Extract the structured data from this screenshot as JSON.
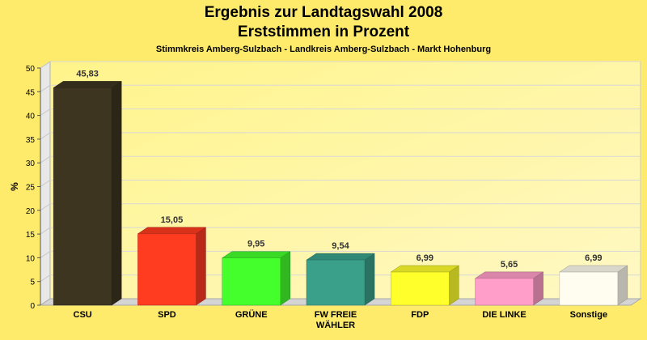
{
  "chart_data": {
    "type": "bar",
    "title": "Ergebnis zur Landtagswahl 2008",
    "title2": "Erststimmen in Prozent",
    "subtitle": "Stimmkreis Amberg-Sulzbach - Landkreis Amberg-Sulzbach - Markt Hohenburg",
    "ylabel": "%",
    "ylim": [
      0,
      50
    ],
    "yticks": [
      0,
      5,
      10,
      15,
      20,
      25,
      30,
      35,
      40,
      45,
      50
    ],
    "grid": true,
    "categories": [
      "CSU",
      "SPD",
      "GRÜNE",
      "FW FREIE WÄHLER",
      "FDP",
      "DIE LINKE",
      "Sonstige"
    ],
    "category_lines": [
      [
        "CSU"
      ],
      [
        "SPD"
      ],
      [
        "GRÜNE"
      ],
      [
        "FW FREIE",
        "WÄHLER"
      ],
      [
        "FDP"
      ],
      [
        "DIE LINKE"
      ],
      [
        "Sonstige"
      ]
    ],
    "values": [
      45.83,
      15.05,
      9.95,
      9.54,
      6.99,
      5.65,
      6.99
    ],
    "value_labels": [
      "45,83",
      "15,05",
      "9,95",
      "9,54",
      "6,99",
      "5,65",
      "6,99"
    ],
    "colors": [
      "#3d3520",
      "#ff3b20",
      "#44ff2c",
      "#3aa08a",
      "#ffff2c",
      "#ff9ec8",
      "#fffdf0"
    ]
  }
}
